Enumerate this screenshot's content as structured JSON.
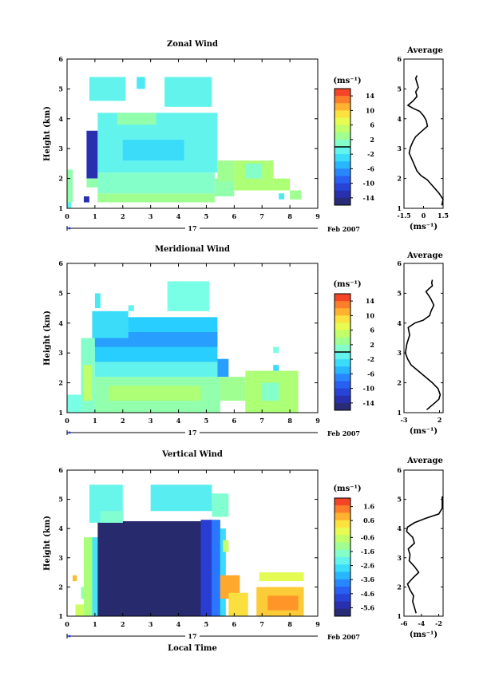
{
  "figure": {
    "date_label": "Feb 2007",
    "day_label": "17",
    "xlabel_bottom": "Local Time"
  },
  "chart_data": [
    {
      "type": "heatmap",
      "title": "Zonal Wind",
      "xlabel": "",
      "ylabel": "Height (km)",
      "xlim": [
        0,
        9
      ],
      "ylim": [
        1,
        6
      ],
      "x_ticks": [
        "0",
        "1",
        "2",
        "3",
        "4",
        "5",
        "6",
        "7",
        "8",
        "9"
      ],
      "y_ticks": [
        "1",
        "2",
        "3",
        "4",
        "5",
        "6"
      ],
      "colorbar": {
        "unit": "(ms⁻¹)",
        "min": -16,
        "max": 16,
        "tick_labels": [
          "14",
          "10",
          "6",
          "2",
          "-2",
          "-6",
          "-10",
          "-14"
        ],
        "tick_values": [
          14,
          10,
          6,
          2,
          -2,
          -6,
          -10,
          -14
        ],
        "marker": 0
      },
      "regions": [
        {
          "x": [
            0.0,
            0.15
          ],
          "y": [
            1.0,
            1.2
          ],
          "value": -1
        },
        {
          "x": [
            0.0,
            0.2
          ],
          "y": [
            1.2,
            2.3
          ],
          "value": 2
        },
        {
          "x": [
            0.6,
            0.8
          ],
          "y": [
            1.2,
            1.4
          ],
          "value": -13
        },
        {
          "x": [
            0.7,
            1.1
          ],
          "y": [
            2.0,
            3.6
          ],
          "value": -13
        },
        {
          "x": [
            0.7,
            1.1
          ],
          "y": [
            1.7,
            2.0
          ],
          "value": 2
        },
        {
          "x": [
            1.1,
            5.3
          ],
          "y": [
            1.2,
            1.5
          ],
          "value": 3
        },
        {
          "x": [
            1.1,
            5.3
          ],
          "y": [
            1.5,
            2.2
          ],
          "value": 1
        },
        {
          "x": [
            5.3,
            6.0
          ],
          "y": [
            1.4,
            2.0
          ],
          "value": 2
        },
        {
          "x": [
            1.1,
            5.4
          ],
          "y": [
            2.2,
            3.3
          ],
          "value": -1
        },
        {
          "x": [
            2.0,
            4.2
          ],
          "y": [
            2.6,
            3.3
          ],
          "value": -3
        },
        {
          "x": [
            1.1,
            5.4
          ],
          "y": [
            3.3,
            4.2
          ],
          "value": -1
        },
        {
          "x": [
            1.8,
            3.2
          ],
          "y": [
            3.8,
            4.2
          ],
          "value": 2
        },
        {
          "x": [
            5.4,
            6.0
          ],
          "y": [
            1.9,
            2.6
          ],
          "value": 3
        },
        {
          "x": [
            6.0,
            7.4
          ],
          "y": [
            1.6,
            2.6
          ],
          "value": 4
        },
        {
          "x": [
            6.4,
            7.0
          ],
          "y": [
            2.0,
            2.5
          ],
          "value": 1
        },
        {
          "x": [
            0.8,
            2.1
          ],
          "y": [
            4.6,
            5.4
          ],
          "value": -1
        },
        {
          "x": [
            2.5,
            2.8
          ],
          "y": [
            5.0,
            5.4
          ],
          "value": -2
        },
        {
          "x": [
            3.5,
            5.2
          ],
          "y": [
            4.4,
            5.4
          ],
          "value": -1
        },
        {
          "x": [
            7.4,
            8.0
          ],
          "y": [
            1.6,
            2.0
          ],
          "value": 4
        },
        {
          "x": [
            7.6,
            7.8
          ],
          "y": [
            1.3,
            1.5
          ],
          "value": -2
        },
        {
          "x": [
            8.0,
            8.4
          ],
          "y": [
            1.3,
            1.6
          ],
          "value": 3
        }
      ],
      "average_profile": {
        "title": "Average",
        "unit": "(ms⁻¹)",
        "xlim": [
          -1.5,
          1.5
        ],
        "x_ticks": [
          "-1.5",
          "0",
          "1.5"
        ],
        "ylim": [
          1,
          6
        ],
        "y_ticks": [
          "1",
          "2",
          "3",
          "4",
          "5",
          "6"
        ],
        "x": [
          1.4,
          1.5,
          1.2,
          0.9,
          0.6,
          0.3,
          -0.2,
          -0.5,
          -0.7,
          -0.9,
          -1.1,
          -1.0,
          -0.8,
          -0.6,
          -0.1,
          0.3,
          0.2,
          0.0,
          -0.3,
          -0.8,
          -1.2,
          -0.8,
          -0.5,
          -0.6,
          -0.4,
          -0.5,
          -0.6,
          -0.5
        ],
        "y": [
          1.1,
          1.3,
          1.5,
          1.65,
          1.8,
          1.95,
          2.1,
          2.25,
          2.45,
          2.65,
          2.85,
          3.05,
          3.25,
          3.4,
          3.6,
          3.75,
          3.95,
          4.1,
          4.25,
          4.35,
          4.45,
          4.6,
          4.75,
          4.9,
          5.05,
          5.2,
          5.35,
          5.45
        ]
      }
    },
    {
      "type": "heatmap",
      "title": "Meridional Wind",
      "xlabel": "",
      "ylabel": "Height (km)",
      "xlim": [
        0,
        9
      ],
      "ylim": [
        1,
        6
      ],
      "x_ticks": [
        "0",
        "1",
        "2",
        "3",
        "4",
        "5",
        "6",
        "7",
        "8",
        "9"
      ],
      "y_ticks": [
        "1",
        "2",
        "3",
        "4",
        "5",
        "6"
      ],
      "colorbar": {
        "unit": "(ms⁻¹)",
        "min": -16,
        "max": 16,
        "tick_labels": [
          "14",
          "10",
          "6",
          "2",
          "-2",
          "-6",
          "-10",
          "-14"
        ],
        "tick_values": [
          14,
          10,
          6,
          2,
          -2,
          -6,
          -10,
          -14
        ],
        "marker": 0
      },
      "regions": [
        {
          "x": [
            0.0,
            0.5
          ],
          "y": [
            1.0,
            1.6
          ],
          "value": 0
        },
        {
          "x": [
            0.5,
            1.0
          ],
          "y": [
            1.0,
            3.5
          ],
          "value": 1
        },
        {
          "x": [
            0.6,
            0.9
          ],
          "y": [
            1.4,
            2.6
          ],
          "value": 5
        },
        {
          "x": [
            1.0,
            5.5
          ],
          "y": [
            1.0,
            2.2
          ],
          "value": 2
        },
        {
          "x": [
            1.5,
            4.8
          ],
          "y": [
            1.4,
            1.9
          ],
          "value": 4
        },
        {
          "x": [
            1.0,
            5.4
          ],
          "y": [
            2.2,
            2.7
          ],
          "value": -1
        },
        {
          "x": [
            1.0,
            5.4
          ],
          "y": [
            2.7,
            4.2
          ],
          "value": -4
        },
        {
          "x": [
            1.0,
            5.4
          ],
          "y": [
            3.2,
            3.7
          ],
          "value": -6
        },
        {
          "x": [
            0.9,
            2.2
          ],
          "y": [
            3.5,
            4.4
          ],
          "value": -3
        },
        {
          "x": [
            1.0,
            1.2
          ],
          "y": [
            4.5,
            5.0
          ],
          "value": -2
        },
        {
          "x": [
            2.2,
            2.4
          ],
          "y": [
            4.4,
            4.6
          ],
          "value": -1
        },
        {
          "x": [
            3.6,
            5.1
          ],
          "y": [
            4.4,
            5.4
          ],
          "value": 0
        },
        {
          "x": [
            5.4,
            5.8
          ],
          "y": [
            2.2,
            2.8
          ],
          "value": -6
        },
        {
          "x": [
            5.5,
            6.4
          ],
          "y": [
            1.4,
            2.2
          ],
          "value": 3
        },
        {
          "x": [
            6.4,
            8.3
          ],
          "y": [
            1.0,
            2.4
          ],
          "value": 4
        },
        {
          "x": [
            7.0,
            7.6
          ],
          "y": [
            1.4,
            2.0
          ],
          "value": 1
        },
        {
          "x": [
            7.4,
            7.6
          ],
          "y": [
            2.4,
            2.6
          ],
          "value": -3
        },
        {
          "x": [
            7.4,
            7.6
          ],
          "y": [
            3.0,
            3.2
          ],
          "value": 0
        }
      ],
      "average_profile": {
        "title": "Average",
        "unit": "(ms⁻¹)",
        "xlim": [
          -3,
          2.5
        ],
        "x_ticks": [
          "-3",
          "2"
        ],
        "ylim": [
          1,
          6
        ],
        "y_ticks": [
          "1",
          "2",
          "3",
          "4",
          "5",
          "6"
        ],
        "x": [
          0.2,
          1.2,
          1.9,
          2.1,
          1.8,
          1.0,
          0.0,
          -1.0,
          -2.0,
          -2.5,
          -2.8,
          -2.6,
          -2.2,
          -2.4,
          -1.5,
          -0.3,
          0.6,
          0.8,
          1.2,
          0.8,
          0.4,
          0.1,
          0.5,
          1.0,
          0.9,
          1.0
        ],
        "y": [
          1.1,
          1.3,
          1.45,
          1.6,
          1.8,
          2.0,
          2.2,
          2.4,
          2.6,
          2.8,
          3.0,
          3.3,
          3.6,
          3.85,
          4.0,
          4.1,
          4.25,
          4.4,
          4.6,
          4.8,
          4.95,
          5.05,
          5.15,
          5.25,
          5.35,
          5.45
        ]
      }
    },
    {
      "type": "heatmap",
      "title": "Vertical Wind",
      "xlabel": "Local Time",
      "ylabel": "Height (km)",
      "xlim": [
        0,
        9
      ],
      "ylim": [
        1,
        6
      ],
      "x_ticks": [
        "0",
        "1",
        "2",
        "3",
        "4",
        "5",
        "6",
        "7",
        "8",
        "9"
      ],
      "y_ticks": [
        "1",
        "2",
        "3",
        "4",
        "5",
        "6"
      ],
      "colorbar": {
        "unit": "(ms⁻¹)",
        "min": -6.2,
        "max": 2.2,
        "tick_labels": [
          "1.6",
          "0.6",
          "-0.6",
          "-1.6",
          "-2.6",
          "-3.6",
          "-4.6",
          "-5.6"
        ],
        "tick_values": [
          1.6,
          0.6,
          -0.6,
          -1.6,
          -2.6,
          -3.6,
          -4.6,
          -5.6
        ],
        "marker": null
      },
      "regions": [
        {
          "x": [
            0.2,
            0.35
          ],
          "y": [
            2.2,
            2.4
          ],
          "value": 0.8
        },
        {
          "x": [
            0.3,
            0.7
          ],
          "y": [
            1.0,
            1.4
          ],
          "value": -0.5
        },
        {
          "x": [
            0.5,
            0.7
          ],
          "y": [
            1.6,
            2.0
          ],
          "value": -1.5
        },
        {
          "x": [
            0.6,
            1.0
          ],
          "y": [
            1.0,
            3.7
          ],
          "value": -1.0
        },
        {
          "x": [
            0.9,
            1.2
          ],
          "y": [
            1.0,
            3.7
          ],
          "value": -2.6
        },
        {
          "x": [
            1.1,
            5.0
          ],
          "y": [
            1.0,
            4.25
          ],
          "value": -6.0
        },
        {
          "x": [
            4.8,
            5.2
          ],
          "y": [
            1.0,
            4.3
          ],
          "value": -5.0
        },
        {
          "x": [
            5.2,
            5.5
          ],
          "y": [
            1.0,
            4.3
          ],
          "value": -4.0
        },
        {
          "x": [
            5.5,
            5.7
          ],
          "y": [
            1.0,
            4.0
          ],
          "value": -2.8
        },
        {
          "x": [
            0.8,
            2.0
          ],
          "y": [
            4.2,
            5.5
          ],
          "value": -2.2
        },
        {
          "x": [
            1.2,
            2.0
          ],
          "y": [
            4.2,
            4.6
          ],
          "value": -1.8
        },
        {
          "x": [
            3.0,
            5.2
          ],
          "y": [
            4.6,
            5.5
          ],
          "value": -2.4
        },
        {
          "x": [
            5.2,
            5.8
          ],
          "y": [
            4.4,
            5.2
          ],
          "value": -1.8
        },
        {
          "x": [
            5.5,
            6.2
          ],
          "y": [
            1.6,
            2.4
          ],
          "value": 1.0
        },
        {
          "x": [
            5.8,
            6.5
          ],
          "y": [
            1.0,
            1.8
          ],
          "value": 0.4
        },
        {
          "x": [
            5.6,
            5.8
          ],
          "y": [
            3.2,
            3.6
          ],
          "value": -0.6
        },
        {
          "x": [
            6.9,
            8.5
          ],
          "y": [
            2.2,
            2.5
          ],
          "value": -0.2
        },
        {
          "x": [
            6.8,
            8.5
          ],
          "y": [
            1.0,
            2.0
          ],
          "value": 0.6
        },
        {
          "x": [
            7.2,
            8.3
          ],
          "y": [
            1.2,
            1.7
          ],
          "value": 1.2
        }
      ],
      "average_profile": {
        "title": "Average",
        "unit": "(ms⁻¹)",
        "xlim": [
          -6,
          -1.5
        ],
        "x_ticks": [
          "-6",
          "-4",
          "-2"
        ],
        "ylim": [
          1,
          6
        ],
        "y_ticks": [
          "1",
          "2",
          "3",
          "4",
          "5",
          "6"
        ],
        "x": [
          -4.6,
          -4.8,
          -5.0,
          -4.9,
          -5.3,
          -5.6,
          -5.0,
          -4.3,
          -4.8,
          -5.4,
          -5.3,
          -5.5,
          -4.8,
          -5.0,
          -5.7,
          -5.6,
          -4.8,
          -3.5,
          -2.0,
          -1.6,
          -1.6
        ],
        "y": [
          1.1,
          1.3,
          1.5,
          1.7,
          1.9,
          2.1,
          2.3,
          2.5,
          2.7,
          2.9,
          3.1,
          3.3,
          3.5,
          3.7,
          3.9,
          4.05,
          4.2,
          4.35,
          4.5,
          4.7,
          5.1
        ]
      }
    }
  ]
}
